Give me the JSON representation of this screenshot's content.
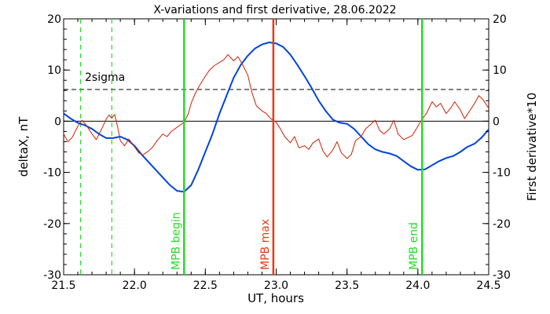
{
  "chart_data": {
    "type": "line",
    "title": "X-variations and first derivative, 28.06.2022",
    "xlabel": "UT, hours",
    "ylabel_left": "deltaX, nT",
    "ylabel_right": "First derivative*10",
    "xlim": [
      21.5,
      24.5
    ],
    "ylim_left": [
      -30,
      20
    ],
    "ylim_right": [
      -30,
      20
    ],
    "x_ticks": [
      "21.5",
      "22.0",
      "22.5",
      "23.0",
      "23.5",
      "24.0",
      "24.5"
    ],
    "y_ticks_left": [
      "20",
      "10",
      "0",
      "-10",
      "-20",
      "-30"
    ],
    "y_ticks_right": [
      "20",
      "10",
      "0",
      "-10",
      "-20",
      "-30"
    ],
    "sigma_label": "2sigma",
    "sigma_level": 6.2,
    "zero_level": 0,
    "colors": {
      "deltaX": "#0044dd",
      "derivative": "#cc2200",
      "mpb_boundary": "#22dd22",
      "mpb_max": "#e83a10",
      "guide": "#000000"
    },
    "series": [
      {
        "name": "deltaX, nT",
        "axis": "left",
        "color": "#0044dd",
        "x": [
          21.5,
          21.55,
          21.6,
          21.65,
          21.7,
          21.75,
          21.8,
          21.85,
          21.9,
          21.95,
          22.0,
          22.05,
          22.1,
          22.15,
          22.2,
          22.25,
          22.3,
          22.35,
          22.4,
          22.45,
          22.5,
          22.55,
          22.6,
          22.65,
          22.7,
          22.75,
          22.8,
          22.85,
          22.9,
          22.95,
          23.0,
          23.05,
          23.1,
          23.15,
          23.2,
          23.25,
          23.3,
          23.35,
          23.4,
          23.45,
          23.5,
          23.55,
          23.6,
          23.65,
          23.7,
          23.75,
          23.8,
          23.85,
          23.9,
          23.95,
          24.0,
          24.05,
          24.1,
          24.15,
          24.2,
          24.25,
          24.3,
          24.35,
          24.4,
          24.45,
          24.5
        ],
        "y": [
          1.5,
          0.5,
          -0.3,
          -0.8,
          -1.5,
          -2.5,
          -3.3,
          -3.3,
          -3.0,
          -3.6,
          -4.8,
          -6.5,
          -8.0,
          -9.5,
          -11.0,
          -12.5,
          -13.6,
          -13.8,
          -12.5,
          -9.5,
          -6.0,
          -2.5,
          1.5,
          5.0,
          8.5,
          11.0,
          12.8,
          14.2,
          15.0,
          15.4,
          15.2,
          14.5,
          13.0,
          11.0,
          8.8,
          6.5,
          4.0,
          2.0,
          0.3,
          -0.3,
          -0.5,
          -1.5,
          -3.0,
          -4.5,
          -5.5,
          -6.0,
          -6.3,
          -6.8,
          -7.8,
          -8.8,
          -9.5,
          -9.4,
          -8.6,
          -7.8,
          -7.2,
          -6.8,
          -6.0,
          -5.0,
          -4.4,
          -3.2,
          -1.6
        ]
      },
      {
        "name": "First derivative*10",
        "axis": "right",
        "color": "#cc2200",
        "x": [
          21.5,
          21.53,
          21.56,
          21.6,
          21.63,
          21.66,
          21.7,
          21.73,
          21.76,
          21.8,
          21.82,
          21.84,
          21.86,
          21.88,
          21.9,
          21.93,
          21.96,
          22.0,
          22.03,
          22.06,
          22.1,
          22.13,
          22.16,
          22.2,
          22.23,
          22.26,
          22.3,
          22.32,
          22.35,
          22.38,
          22.4,
          22.43,
          22.46,
          22.5,
          22.53,
          22.56,
          22.6,
          22.63,
          22.66,
          22.7,
          22.73,
          22.76,
          22.8,
          22.83,
          22.86,
          22.9,
          22.93,
          22.96,
          23.0,
          23.03,
          23.06,
          23.1,
          23.13,
          23.16,
          23.2,
          23.23,
          23.26,
          23.3,
          23.33,
          23.36,
          23.4,
          23.43,
          23.46,
          23.5,
          23.53,
          23.56,
          23.6,
          23.63,
          23.66,
          23.7,
          23.73,
          23.76,
          23.8,
          23.83,
          23.86,
          23.9,
          23.93,
          23.96,
          24.0,
          24.03,
          24.06,
          24.1,
          24.13,
          24.16,
          24.2,
          24.23,
          24.26,
          24.3,
          24.33,
          24.36,
          24.4,
          24.43,
          24.46,
          24.5
        ],
        "y": [
          -2.5,
          -4.0,
          -3.2,
          -1.0,
          0.2,
          -0.8,
          -2.5,
          -3.6,
          -2.0,
          0.4,
          1.2,
          0.6,
          1.3,
          -1.0,
          -3.8,
          -4.8,
          -3.5,
          -5.0,
          -6.2,
          -6.6,
          -5.8,
          -5.0,
          -3.8,
          -2.5,
          -3.0,
          -2.0,
          -1.2,
          -0.8,
          -0.2,
          1.5,
          3.5,
          5.5,
          7.0,
          8.8,
          10.0,
          10.8,
          11.5,
          12.0,
          13.0,
          11.8,
          12.6,
          11.2,
          9.0,
          5.5,
          3.0,
          2.0,
          1.5,
          0.5,
          -0.2,
          -1.5,
          -3.0,
          -4.2,
          -3.0,
          -5.2,
          -4.8,
          -5.5,
          -4.2,
          -3.5,
          -5.8,
          -7.0,
          -5.6,
          -4.0,
          -6.2,
          -7.3,
          -6.5,
          -3.8,
          -3.0,
          -1.5,
          -0.8,
          0.2,
          -1.8,
          -2.5,
          -1.5,
          0.2,
          -2.5,
          -3.6,
          -3.2,
          -2.8,
          -1.0,
          0.4,
          1.5,
          3.8,
          2.8,
          3.5,
          1.5,
          2.5,
          3.8,
          2.2,
          0.5,
          1.8,
          3.5,
          5.0,
          4.2,
          2.5
        ]
      }
    ],
    "dashed_markers": [
      21.62,
      21.84
    ],
    "markers": [
      {
        "label": "MPB begin",
        "x": 22.35,
        "color": "#22dd22"
      },
      {
        "label": "MPB max",
        "x": 22.98,
        "color": "#e83a10"
      },
      {
        "label": "MPB end",
        "x": 24.03,
        "color": "#22dd22"
      }
    ]
  }
}
